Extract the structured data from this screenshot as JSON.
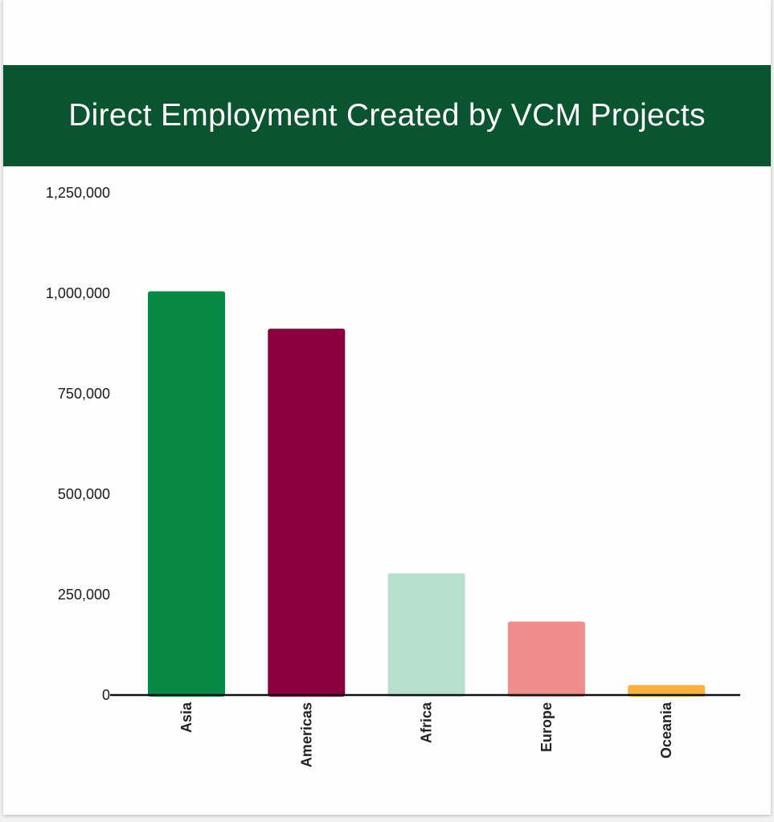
{
  "header": {
    "title": "Direct Employment Created by VCM Projects",
    "background": "#0b5430",
    "text_color": "#ffffff"
  },
  "chart_data": {
    "type": "bar",
    "title": "Direct Employment Created by VCM Projects",
    "xlabel": "",
    "ylabel": "",
    "categories": [
      "Asia",
      "Americas",
      "Africa",
      "Europe",
      "Oceania"
    ],
    "values": [
      1005000,
      912000,
      303000,
      183000,
      25000
    ],
    "colors": [
      "#068a46",
      "#8c0040",
      "#b7e0cc",
      "#ef8c8c",
      "#f9b13d"
    ],
    "ylim": [
      0,
      1250000
    ],
    "yticks": [
      {
        "value": 0,
        "label": "0"
      },
      {
        "value": 250000,
        "label": "250,000"
      },
      {
        "value": 500000,
        "label": "500,000"
      },
      {
        "value": 750000,
        "label": "750,000"
      },
      {
        "value": 1000000,
        "label": "1,000,000"
      },
      {
        "value": 1250000,
        "label": "1,250,000"
      }
    ],
    "grid": false,
    "legend": "none"
  }
}
